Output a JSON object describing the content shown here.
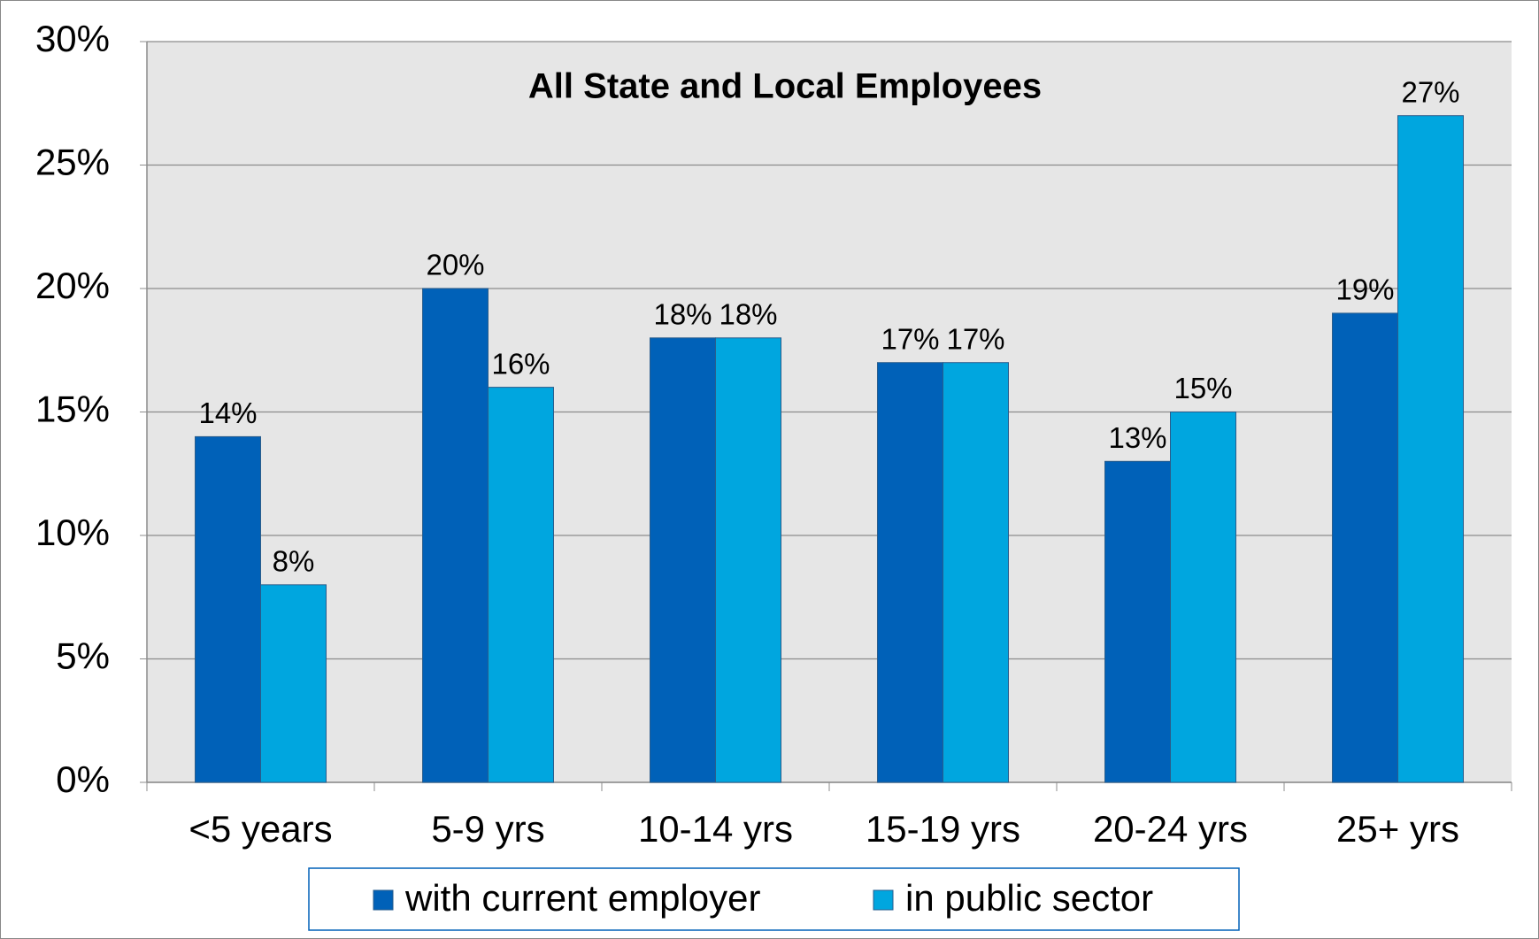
{
  "chart_data": {
    "type": "bar",
    "title": "All State and Local Employees",
    "categories": [
      "<5 years",
      "5-9 yrs",
      "10-14 yrs",
      "15-19 yrs",
      "20-24 yrs",
      "25+ yrs"
    ],
    "series": [
      {
        "name": "with current employer",
        "color": "#0061b8",
        "values": [
          14,
          20,
          18,
          17,
          13,
          19
        ],
        "value_labels": [
          "14%",
          "20%",
          "18%",
          "17%",
          "13%",
          "19%"
        ]
      },
      {
        "name": "in public sector",
        "color": "#00a6df",
        "values": [
          8,
          16,
          18,
          17,
          15,
          27
        ],
        "value_labels": [
          "8%",
          "16%",
          "18%",
          "17%",
          "15%",
          "27%"
        ]
      }
    ],
    "ylim": [
      0,
      30
    ],
    "yticks": [
      {
        "value": 0,
        "label": "0%"
      },
      {
        "value": 5,
        "label": "5%"
      },
      {
        "value": 10,
        "label": "10%"
      },
      {
        "value": 15,
        "label": "15%"
      },
      {
        "value": 20,
        "label": "20%"
      },
      {
        "value": 25,
        "label": "25%"
      },
      {
        "value": 30,
        "label": "30%"
      }
    ],
    "grid": true,
    "legend": "bottom"
  }
}
